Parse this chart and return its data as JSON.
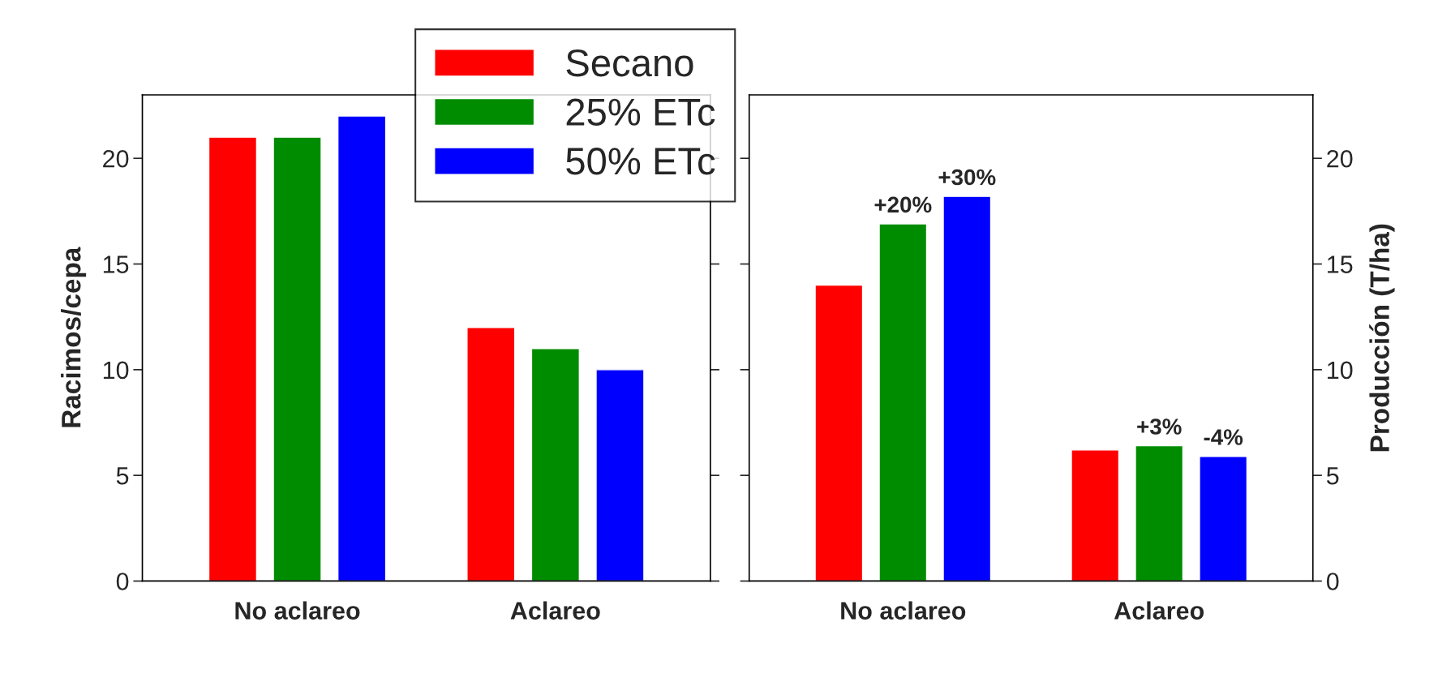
{
  "chart_data": [
    {
      "type": "bar",
      "ylabel": "Racimos/cepa",
      "categories": [
        "No aclareo",
        "Aclareo"
      ],
      "ylim": [
        0,
        23
      ],
      "yticks": [
        0,
        5,
        10,
        15,
        20
      ],
      "legend": "top",
      "grid": false,
      "series": [
        {
          "name": "Secano",
          "color": "#ff0000",
          "values": [
            21,
            12
          ]
        },
        {
          "name": "25% ETc",
          "color": "#008c00",
          "values": [
            21,
            11
          ]
        },
        {
          "name": "50% ETc",
          "color": "#0000ff",
          "values": [
            22,
            10
          ]
        }
      ]
    },
    {
      "type": "bar",
      "ylabel": "Producción (T/ha)",
      "categories": [
        "No aclareo",
        "Aclareo"
      ],
      "ylim": [
        0,
        23
      ],
      "yticks": [
        0,
        5,
        10,
        15,
        20
      ],
      "grid": false,
      "series": [
        {
          "color": "#ff0000",
          "values": [
            14.0,
            6.2
          ]
        },
        {
          "color": "#008c00",
          "values": [
            16.9,
            6.4
          ]
        },
        {
          "color": "#0000ff",
          "values": [
            18.2,
            5.9
          ]
        }
      ],
      "annotations": [
        {
          "text": "+20%",
          "x": "No aclareo",
          "y": 16.9
        },
        "+30%",
        {
          "text": "+3%",
          "x": "Aclareo",
          "y": 6.4
        },
        "-4%"
      ]
    }
  ]
}
